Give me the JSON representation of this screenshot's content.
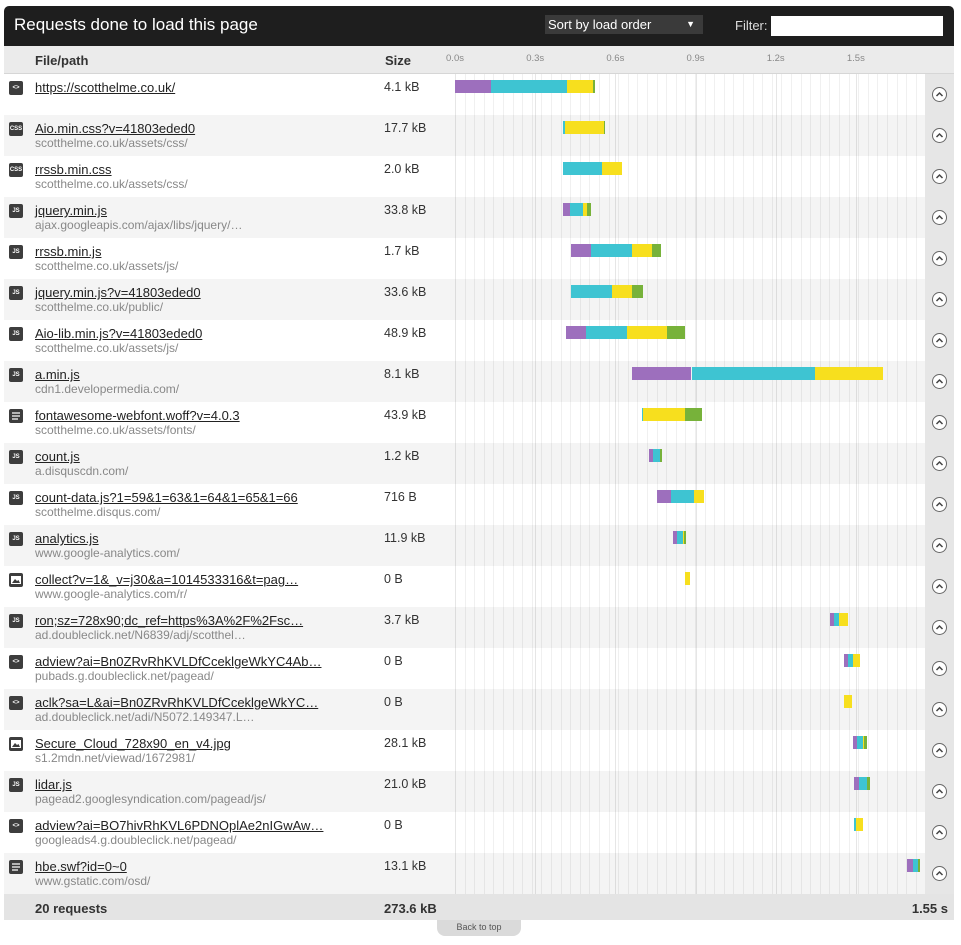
{
  "header": {
    "title": "Requests done to load this page",
    "sort": "Sort by load order",
    "filter_label": "Filter:"
  },
  "columns": {
    "file": "File/path",
    "size": "Size"
  },
  "timeline": {
    "xlim": [
      0,
      1.74
    ],
    "xticks": [
      {
        "value": 0,
        "label": "0.0s"
      },
      {
        "value": 0.3,
        "label": "0.3s"
      },
      {
        "value": 0.6,
        "label": "0.6s"
      },
      {
        "value": 0.9,
        "label": "0.9s"
      },
      {
        "value": 1.2,
        "label": "1.2s"
      },
      {
        "value": 1.5,
        "label": "1.5s"
      }
    ],
    "segment_colors": [
      "#9d6fbd",
      "#3ec4d2",
      "#f7df1e",
      "#77b23a"
    ]
  },
  "rows": [
    {
      "icon": "<>",
      "file": "https://scotthelme.co.uk/",
      "path": null,
      "size": "4.1 kB",
      "start": 0,
      "segments": [
        0.135,
        0.285,
        0.097,
        0.008
      ]
    },
    {
      "icon": "CSS",
      "file": "Aio.min.css?v=41803eded0",
      "path": "scotthelme.co.uk/assets/css/",
      "size": "17.7 kB",
      "start": 0.405,
      "segments": [
        0,
        0.005,
        0.146,
        0.004
      ]
    },
    {
      "icon": "CSS",
      "file": "rrssb.min.css",
      "path": "scotthelme.co.uk/assets/css/",
      "size": "2.0 kB",
      "start": 0.405,
      "segments": [
        0,
        0.146,
        0.075,
        0
      ]
    },
    {
      "icon": "JS",
      "file": "jquery.min.js",
      "path": "ajax.googleapis.com/ajax/libs/jquery/…",
      "size": "33.8 kB",
      "start": 0.405,
      "segments": [
        0.026,
        0.049,
        0.015,
        0.015
      ]
    },
    {
      "icon": "JS",
      "file": "rrssb.min.js",
      "path": "scotthelme.co.uk/assets/js/",
      "size": "1.7 kB",
      "start": 0.435,
      "segments": [
        0.075,
        0.154,
        0.075,
        0.03
      ]
    },
    {
      "icon": "JS",
      "file": "jquery.min.js?v=41803eded0",
      "path": "scotthelme.co.uk/public/",
      "size": "33.6 kB",
      "start": 0.435,
      "segments": [
        0,
        0.154,
        0.075,
        0.041
      ]
    },
    {
      "icon": "JS",
      "file": "Aio-lib.min.js?v=41803eded0",
      "path": "scotthelme.co.uk/assets/js/",
      "size": "48.9 kB",
      "start": 0.416,
      "segments": [
        0.075,
        0.154,
        0.15,
        0.067
      ]
    },
    {
      "icon": "JS",
      "file": "a.min.js",
      "path": "cdn1.developermedia.com/",
      "size": "8.1 kB",
      "start": 0.664,
      "segments": [
        0.221,
        0.461,
        0.255,
        0
      ]
    },
    {
      "icon": null,
      "file": "fontawesome-webfont.woff?v=4.0.3",
      "path": "scotthelme.co.uk/assets/fonts/",
      "size": "43.9 kB",
      "start": 0.701,
      "segments": [
        0,
        0.004,
        0.154,
        0.064
      ]
    },
    {
      "icon": "JS",
      "file": "count.js",
      "path": "a.disquscdn.com/",
      "size": "1.2 kB",
      "start": 0.727,
      "segments": [
        0.015,
        0.026,
        0,
        0.008
      ]
    },
    {
      "icon": "JS",
      "file": "count-data.js?1=59&1=63&1=64&1=65&1=66",
      "path": "scotthelme.disqus.com/",
      "size": "716 B",
      "start": 0.757,
      "segments": [
        0.052,
        0.086,
        0.037,
        0
      ]
    },
    {
      "icon": "JS",
      "file": "analytics.js",
      "path": "www.google-analytics.com/",
      "size": "11.9 kB",
      "start": 0.817,
      "segments": [
        0.015,
        0.022,
        0.004,
        0.008
      ]
    },
    {
      "icon": null,
      "file": "collect?v=1&_v=j30&a=1014533316&t=pag…",
      "path": "www.google-analytics.com/r/",
      "size": "0 B",
      "start": 0.859,
      "segments": [
        0,
        0,
        0.019,
        0
      ]
    },
    {
      "icon": "JS",
      "file": "ron;sz=728x90;dc_ref=https%3A%2F%2Fsc…",
      "path": "ad.doubleclick.net/N6839/adj/scotthel…",
      "size": "3.7 kB",
      "start": 1.402,
      "segments": [
        0.015,
        0.019,
        0.034,
        0
      ]
    },
    {
      "icon": "<>",
      "file": "adview?ai=Bn0ZRvRhKVLDfCceklgeWkYC4Ab…",
      "path": "pubads.g.doubleclick.net/pagead/",
      "size": "0 B",
      "start": 1.455,
      "segments": [
        0.015,
        0.019,
        0.026,
        0
      ]
    },
    {
      "icon": "<>",
      "file": "aclk?sa=L&ai=Bn0ZRvRhKVLDfCceklgeWkYC…",
      "path": "ad.doubleclick.net/adi/N5072.149347.L…",
      "size": "0 B",
      "start": 1.455,
      "segments": [
        0,
        0,
        0.03,
        0
      ]
    },
    {
      "icon": null,
      "file": "Secure_Cloud_728x90_en_v4.jpg",
      "path": "s1.2mdn.net/viewad/1672981/",
      "size": "28.1 kB",
      "start": 1.489,
      "segments": [
        0.015,
        0.022,
        0.004,
        0.011
      ]
    },
    {
      "icon": "JS",
      "file": "lidar.js",
      "path": "pagead2.googlesyndication.com/pagead/js/",
      "size": "21.0 kB",
      "start": 1.492,
      "segments": [
        0.019,
        0.03,
        0,
        0.011
      ]
    },
    {
      "icon": "<>",
      "file": "adview?ai=BO7hivRhKVL6PDNOplAe2nIGwAw…",
      "path": "googleads4.g.doubleclick.net/pagead/",
      "size": "0 B",
      "start": 1.492,
      "segments": [
        0,
        0.008,
        0.026,
        0
      ]
    },
    {
      "icon": null,
      "file": "hbe.swf?id=0~0",
      "path": "www.gstatic.com/osd/",
      "size": "13.1 kB",
      "start": 1.691,
      "segments": [
        0.022,
        0.019,
        0,
        0.008
      ]
    }
  ],
  "footer": {
    "requests": "20 requests",
    "total_size": "273.6 kB",
    "total_time": "1.55 s",
    "back_to_top": "Back to top"
  }
}
